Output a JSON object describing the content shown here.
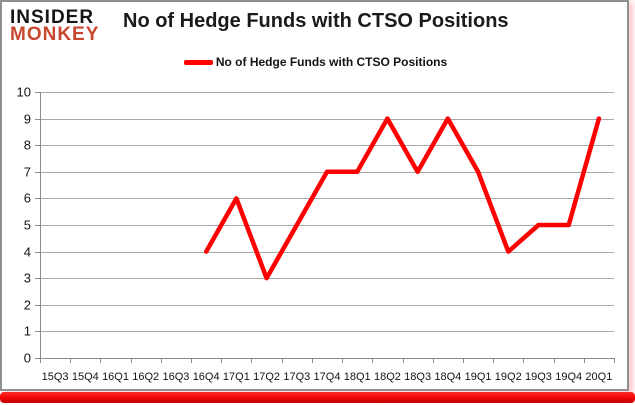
{
  "branding": {
    "logo_top": "INSIDER",
    "logo_bottom": "MONKEY",
    "logo_accent_color": "#c9472e"
  },
  "header": {
    "title": "No of Hedge Funds with CTSO Positions"
  },
  "legend": {
    "label": "No of Hedge Funds with CTSO Positions",
    "swatch_color": "#fe0000"
  },
  "chart_data": {
    "type": "line",
    "title": "No of Hedge Funds with CTSO Positions",
    "categories": [
      "15Q3",
      "15Q4",
      "16Q1",
      "16Q2",
      "16Q3",
      "16Q4",
      "17Q1",
      "17Q2",
      "17Q3",
      "17Q4",
      "18Q1",
      "18Q2",
      "18Q3",
      "18Q4",
      "19Q1",
      "19Q2",
      "19Q3",
      "19Q4",
      "20Q1"
    ],
    "series": [
      {
        "name": "No of Hedge Funds with CTSO Positions",
        "color": "#fe0000",
        "values": [
          null,
          null,
          null,
          null,
          null,
          4,
          6,
          3,
          5,
          7,
          7,
          9,
          7,
          9,
          7,
          4,
          5,
          5,
          9
        ]
      }
    ],
    "xlabel": "",
    "ylabel": "",
    "ylim": [
      0,
      10
    ],
    "ytick_step": 1,
    "grid": true,
    "legend_position": "top-center",
    "colors": {
      "gridline": "#a8a8a8",
      "axis": "#8c8c8c",
      "tick_label": "#141414"
    }
  }
}
